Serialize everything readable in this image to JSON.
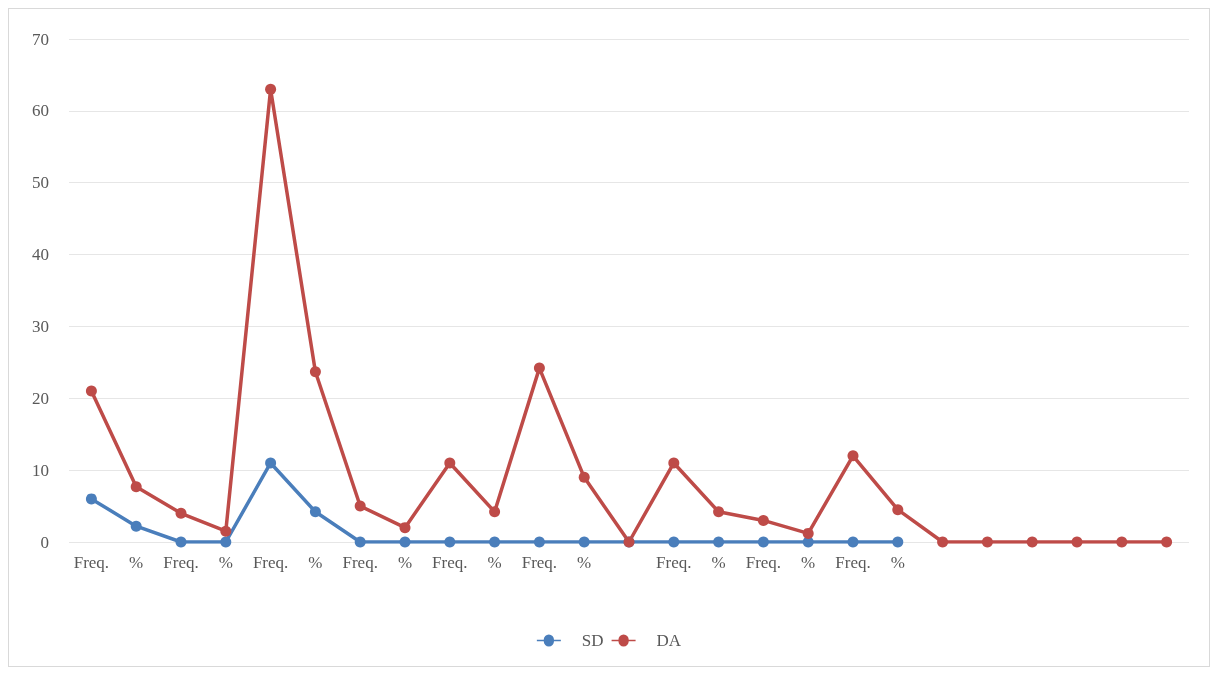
{
  "chart_data": {
    "type": "line",
    "categories": [
      "Freq.",
      "%",
      "Freq.",
      "%",
      "Freq.",
      "%",
      "Freq.",
      "%",
      "Freq.",
      "%",
      "Freq.",
      "%",
      null,
      "Freq.",
      "%",
      "Freq.",
      "%",
      "Freq.",
      "%",
      null,
      null,
      null,
      null,
      null,
      null
    ],
    "series": [
      {
        "name": "SD",
        "color": "#4a7ebb",
        "values": [
          6,
          2.2,
          0,
          0,
          11,
          4.2,
          0,
          0,
          0,
          0,
          0,
          0,
          0,
          0,
          0,
          0,
          0,
          0,
          0,
          null,
          null,
          null,
          null,
          null,
          null
        ]
      },
      {
        "name": "DA",
        "color": "#be4b48",
        "values": [
          21,
          7.7,
          4,
          1.5,
          63,
          23.7,
          5,
          2,
          11,
          4.2,
          24.2,
          9,
          0,
          11,
          4.2,
          3,
          1.2,
          12,
          4.5,
          0,
          0,
          0,
          0,
          0,
          0
        ]
      }
    ],
    "ylim": [
      0,
      70
    ],
    "yticks": [
      0,
      10,
      20,
      30,
      40,
      50,
      60,
      70
    ],
    "grid": "y",
    "legend": "bottom",
    "marker": "circle",
    "line_style": "solid"
  }
}
